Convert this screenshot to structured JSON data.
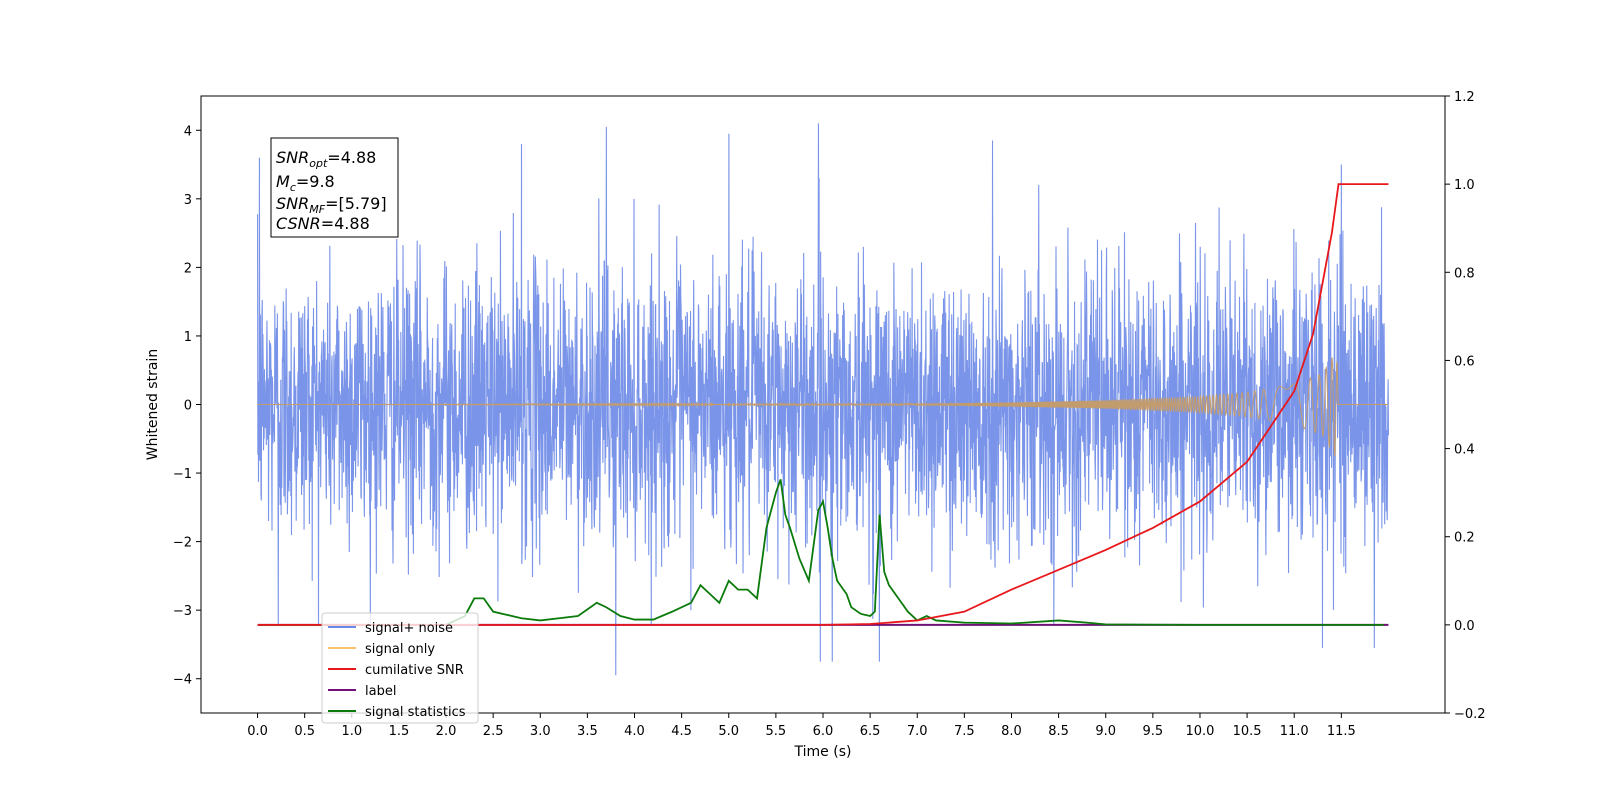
{
  "chart_data": {
    "type": "line",
    "xlabel": "Time (s)",
    "ylabel": "Whitened strain",
    "x_ticks": [
      "0.0",
      "0.5",
      "1.0",
      "1.5",
      "2.0",
      "2.5",
      "3.0",
      "3.5",
      "4.0",
      "4.5",
      "5.0",
      "5.5",
      "6.0",
      "6.5",
      "7.0",
      "7.5",
      "8.0",
      "8.5",
      "9.0",
      "9.5",
      "10.0",
      "10.5",
      "11.0",
      "11.5"
    ],
    "xlim": [
      -0.6,
      12.6
    ],
    "ylim": [
      -4.5,
      4.5
    ],
    "y_ticks": [
      "4",
      "3",
      "2",
      "1",
      "0",
      "−1",
      "−2",
      "−3",
      "−4"
    ],
    "y2lim": [
      -0.2,
      1.2
    ],
    "y2_ticks": [
      "1.2",
      "1.0",
      "0.8",
      "0.6",
      "0.4",
      "0.2",
      "0.0",
      "−0.2"
    ],
    "grid": false,
    "legend_position": "lower-left",
    "annotation": {
      "snr_opt": "=4.88",
      "mc": "=9.8",
      "snr_mf": "=[5.79]",
      "csnr": "=4.88"
    },
    "series": [
      {
        "name": "signal+ noise",
        "color": "#6a88e6",
        "axis": "left",
        "x_range": [
          0.0,
          12.0
        ],
        "mean": 0.0,
        "std": 1.0,
        "peak_points": [
          {
            "x": 0.02,
            "y": 3.6
          },
          {
            "x": 2.8,
            "y": 3.8
          },
          {
            "x": 3.7,
            "y": 4.05
          },
          {
            "x": 5.0,
            "y": 3.95
          },
          {
            "x": 5.95,
            "y": 4.1
          },
          {
            "x": 7.8,
            "y": 3.85
          },
          {
            "x": 11.5,
            "y": 3.5
          },
          {
            "x": 3.8,
            "y": -3.95
          },
          {
            "x": 5.97,
            "y": -3.75
          },
          {
            "x": 6.1,
            "y": -3.75
          },
          {
            "x": 6.6,
            "y": -3.75
          },
          {
            "x": 11.3,
            "y": -3.55
          },
          {
            "x": 11.85,
            "y": -3.55
          },
          {
            "x": 0.22,
            "y": -3.2
          }
        ]
      },
      {
        "name": "signal only",
        "color": "#f5c26b",
        "axis": "left",
        "envelope": {
          "x": [
            0.0,
            7.0,
            8.0,
            9.0,
            10.0,
            10.5,
            11.0,
            11.3,
            11.45,
            11.47,
            12.0
          ],
          "amp": [
            0.0,
            0.01,
            0.03,
            0.06,
            0.12,
            0.18,
            0.3,
            0.45,
            0.8,
            0.0,
            0.0
          ]
        }
      },
      {
        "name": "cumilative SNR",
        "color": "#e8171b",
        "axis": "right",
        "x": [
          0.0,
          6.0,
          6.5,
          7.0,
          7.5,
          8.0,
          8.5,
          9.0,
          9.5,
          10.0,
          10.5,
          11.0,
          11.2,
          11.4,
          11.47,
          12.0
        ],
        "y": [
          0.0,
          0.0,
          0.002,
          0.01,
          0.03,
          0.08,
          0.125,
          0.17,
          0.22,
          0.28,
          0.37,
          0.53,
          0.66,
          0.89,
          1.0,
          1.0
        ]
      },
      {
        "name": "label",
        "color": "#6f1178",
        "axis": "right",
        "x": [
          0.0,
          12.0
        ],
        "y": [
          0.0,
          0.0
        ]
      },
      {
        "name": "signal statistics",
        "color": "#0a7a0a",
        "axis": "right",
        "x": [
          0.0,
          0.5,
          1.0,
          1.5,
          2.0,
          2.2,
          2.3,
          2.4,
          2.5,
          2.6,
          2.8,
          3.0,
          3.2,
          3.4,
          3.6,
          3.7,
          3.85,
          4.0,
          4.2,
          4.4,
          4.6,
          4.7,
          4.8,
          4.9,
          5.0,
          5.1,
          5.2,
          5.3,
          5.4,
          5.5,
          5.55,
          5.6,
          5.65,
          5.75,
          5.85,
          5.95,
          6.0,
          6.05,
          6.1,
          6.15,
          6.25,
          6.3,
          6.4,
          6.5,
          6.55,
          6.6,
          6.65,
          6.7,
          6.8,
          6.9,
          7.0,
          7.1,
          7.2,
          7.5,
          8.0,
          8.5,
          8.8,
          9.0,
          10.0,
          11.0,
          11.5,
          11.95
        ],
        "y": [
          0.0,
          0.0,
          0.0,
          0.0,
          0.0,
          0.02,
          0.06,
          0.06,
          0.03,
          0.025,
          0.015,
          0.01,
          0.015,
          0.02,
          0.05,
          0.04,
          0.02,
          0.012,
          0.012,
          0.03,
          0.05,
          0.09,
          0.07,
          0.05,
          0.1,
          0.08,
          0.08,
          0.06,
          0.22,
          0.3,
          0.33,
          0.25,
          0.22,
          0.15,
          0.1,
          0.26,
          0.28,
          0.22,
          0.15,
          0.1,
          0.07,
          0.04,
          0.025,
          0.02,
          0.03,
          0.25,
          0.12,
          0.09,
          0.06,
          0.03,
          0.01,
          0.02,
          0.01,
          0.005,
          0.003,
          0.01,
          0.005,
          0.001,
          0.0,
          0.0,
          0.0,
          0.0
        ]
      }
    ]
  }
}
